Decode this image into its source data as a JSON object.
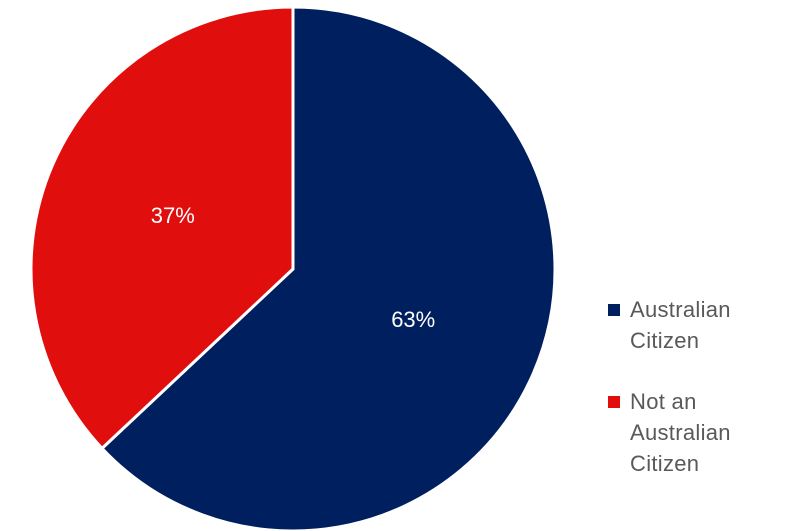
{
  "chart_data": {
    "type": "pie",
    "categories": [
      "Australian Citizen",
      "Not an Australian Citizen"
    ],
    "values": [
      63,
      37
    ],
    "value_labels": [
      "63%",
      "37%"
    ],
    "colors": [
      "#001f5f",
      "#e10e0e"
    ],
    "start_angle_deg": 0,
    "direction": "clockwise",
    "legend_position": "right"
  },
  "legend": {
    "items": [
      {
        "label": "Australian Citizen",
        "color": "#001f5f"
      },
      {
        "label": "Not an Australian Citizen",
        "color": "#e10e0e"
      }
    ]
  }
}
